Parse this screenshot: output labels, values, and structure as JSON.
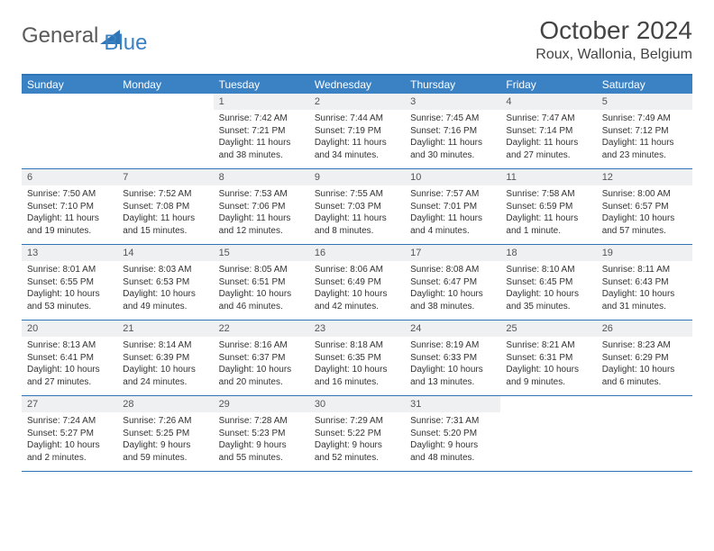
{
  "logo": {
    "text1": "General",
    "text2": "Blue"
  },
  "title": "October 2024",
  "location": "Roux, Wallonia, Belgium",
  "colors": {
    "brand_blue": "#3b82c4",
    "rule_blue": "#2f74b5",
    "daynum_bg": "#eef0f2",
    "text": "#333333",
    "logo_gray": "#5a5a5a"
  },
  "day_headers": [
    "Sunday",
    "Monday",
    "Tuesday",
    "Wednesday",
    "Thursday",
    "Friday",
    "Saturday"
  ],
  "weeks": [
    [
      {
        "empty": true
      },
      {
        "empty": true
      },
      {
        "n": "1",
        "sr": "7:42 AM",
        "ss": "7:21 PM",
        "dl": "11 hours and 38 minutes."
      },
      {
        "n": "2",
        "sr": "7:44 AM",
        "ss": "7:19 PM",
        "dl": "11 hours and 34 minutes."
      },
      {
        "n": "3",
        "sr": "7:45 AM",
        "ss": "7:16 PM",
        "dl": "11 hours and 30 minutes."
      },
      {
        "n": "4",
        "sr": "7:47 AM",
        "ss": "7:14 PM",
        "dl": "11 hours and 27 minutes."
      },
      {
        "n": "5",
        "sr": "7:49 AM",
        "ss": "7:12 PM",
        "dl": "11 hours and 23 minutes."
      }
    ],
    [
      {
        "n": "6",
        "sr": "7:50 AM",
        "ss": "7:10 PM",
        "dl": "11 hours and 19 minutes."
      },
      {
        "n": "7",
        "sr": "7:52 AM",
        "ss": "7:08 PM",
        "dl": "11 hours and 15 minutes."
      },
      {
        "n": "8",
        "sr": "7:53 AM",
        "ss": "7:06 PM",
        "dl": "11 hours and 12 minutes."
      },
      {
        "n": "9",
        "sr": "7:55 AM",
        "ss": "7:03 PM",
        "dl": "11 hours and 8 minutes."
      },
      {
        "n": "10",
        "sr": "7:57 AM",
        "ss": "7:01 PM",
        "dl": "11 hours and 4 minutes."
      },
      {
        "n": "11",
        "sr": "7:58 AM",
        "ss": "6:59 PM",
        "dl": "11 hours and 1 minute."
      },
      {
        "n": "12",
        "sr": "8:00 AM",
        "ss": "6:57 PM",
        "dl": "10 hours and 57 minutes."
      }
    ],
    [
      {
        "n": "13",
        "sr": "8:01 AM",
        "ss": "6:55 PM",
        "dl": "10 hours and 53 minutes."
      },
      {
        "n": "14",
        "sr": "8:03 AM",
        "ss": "6:53 PM",
        "dl": "10 hours and 49 minutes."
      },
      {
        "n": "15",
        "sr": "8:05 AM",
        "ss": "6:51 PM",
        "dl": "10 hours and 46 minutes."
      },
      {
        "n": "16",
        "sr": "8:06 AM",
        "ss": "6:49 PM",
        "dl": "10 hours and 42 minutes."
      },
      {
        "n": "17",
        "sr": "8:08 AM",
        "ss": "6:47 PM",
        "dl": "10 hours and 38 minutes."
      },
      {
        "n": "18",
        "sr": "8:10 AM",
        "ss": "6:45 PM",
        "dl": "10 hours and 35 minutes."
      },
      {
        "n": "19",
        "sr": "8:11 AM",
        "ss": "6:43 PM",
        "dl": "10 hours and 31 minutes."
      }
    ],
    [
      {
        "n": "20",
        "sr": "8:13 AM",
        "ss": "6:41 PM",
        "dl": "10 hours and 27 minutes."
      },
      {
        "n": "21",
        "sr": "8:14 AM",
        "ss": "6:39 PM",
        "dl": "10 hours and 24 minutes."
      },
      {
        "n": "22",
        "sr": "8:16 AM",
        "ss": "6:37 PM",
        "dl": "10 hours and 20 minutes."
      },
      {
        "n": "23",
        "sr": "8:18 AM",
        "ss": "6:35 PM",
        "dl": "10 hours and 16 minutes."
      },
      {
        "n": "24",
        "sr": "8:19 AM",
        "ss": "6:33 PM",
        "dl": "10 hours and 13 minutes."
      },
      {
        "n": "25",
        "sr": "8:21 AM",
        "ss": "6:31 PM",
        "dl": "10 hours and 9 minutes."
      },
      {
        "n": "26",
        "sr": "8:23 AM",
        "ss": "6:29 PM",
        "dl": "10 hours and 6 minutes."
      }
    ],
    [
      {
        "n": "27",
        "sr": "7:24 AM",
        "ss": "5:27 PM",
        "dl": "10 hours and 2 minutes."
      },
      {
        "n": "28",
        "sr": "7:26 AM",
        "ss": "5:25 PM",
        "dl": "9 hours and 59 minutes."
      },
      {
        "n": "29",
        "sr": "7:28 AM",
        "ss": "5:23 PM",
        "dl": "9 hours and 55 minutes."
      },
      {
        "n": "30",
        "sr": "7:29 AM",
        "ss": "5:22 PM",
        "dl": "9 hours and 52 minutes."
      },
      {
        "n": "31",
        "sr": "7:31 AM",
        "ss": "5:20 PM",
        "dl": "9 hours and 48 minutes."
      },
      {
        "empty": true
      },
      {
        "empty": true
      }
    ]
  ],
  "labels": {
    "sunrise": "Sunrise: ",
    "sunset": "Sunset: ",
    "daylight": "Daylight: "
  }
}
